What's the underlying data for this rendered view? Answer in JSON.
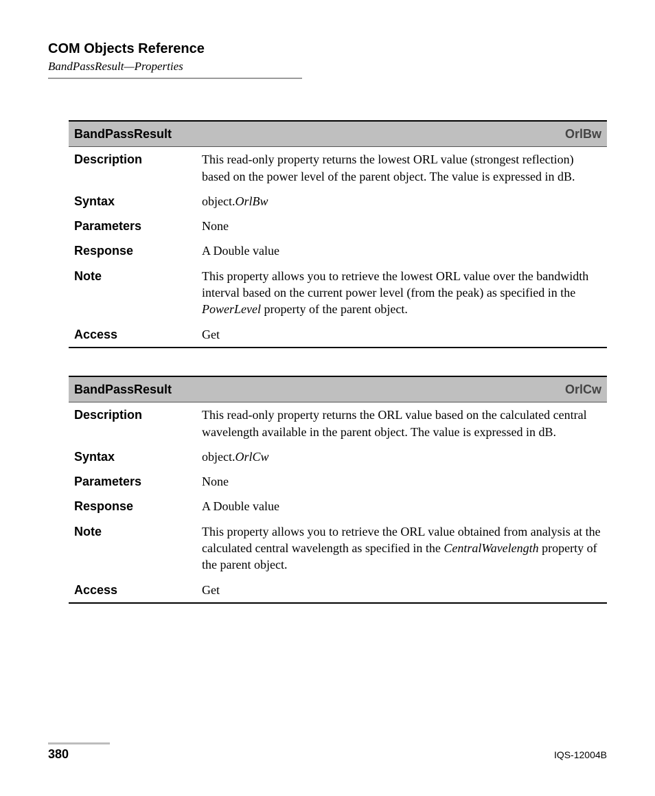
{
  "header": {
    "title": "COM Objects Reference",
    "subtitle": "BandPassResult—Properties"
  },
  "tables": [
    {
      "class_name": "BandPassResult",
      "prop_name": "OrlBw",
      "rows": {
        "description_label": "Description",
        "description_value": "This read-only property returns the lowest ORL value (strongest reflection) based on the power level of the parent object. The value is expressed in dB.",
        "syntax_label": "Syntax",
        "syntax_prefix": "object.",
        "syntax_italic": "OrlBw",
        "parameters_label": "Parameters",
        "parameters_value": "None",
        "response_label": "Response",
        "response_value": "A Double value",
        "note_label": "Note",
        "note_before": "This property allows you to retrieve the lowest ORL value over the bandwidth interval based on the current power level (from the peak) as specified in the ",
        "note_italic": "PowerLevel",
        "note_after": " property of the parent object.",
        "access_label": "Access",
        "access_value": "Get"
      }
    },
    {
      "class_name": "BandPassResult",
      "prop_name": "OrlCw",
      "rows": {
        "description_label": "Description",
        "description_value": "This read-only property returns the ORL value based on the calculated central wavelength available in the parent object. The value is expressed in dB.",
        "syntax_label": "Syntax",
        "syntax_prefix": "object.",
        "syntax_italic": "OrlCw",
        "parameters_label": "Parameters",
        "parameters_value": "None",
        "response_label": "Response",
        "response_value": " A Double value",
        "note_label": "Note",
        "note_before": "This property allows you to retrieve the ORL value obtained from analysis at the calculated central wavelength as specified in the ",
        "note_italic": "CentralWavelength",
        "note_after": " property of the parent object.",
        "access_label": "Access",
        "access_value": "Get"
      }
    }
  ],
  "footer": {
    "page": "380",
    "docid": "IQS-12004B"
  },
  "style": {
    "header_band_bg": "#bfbfbf",
    "prop_name_color": "#444444",
    "rule_color": "#9a9a9a",
    "footer_rule_color": "#bdbdbd"
  }
}
